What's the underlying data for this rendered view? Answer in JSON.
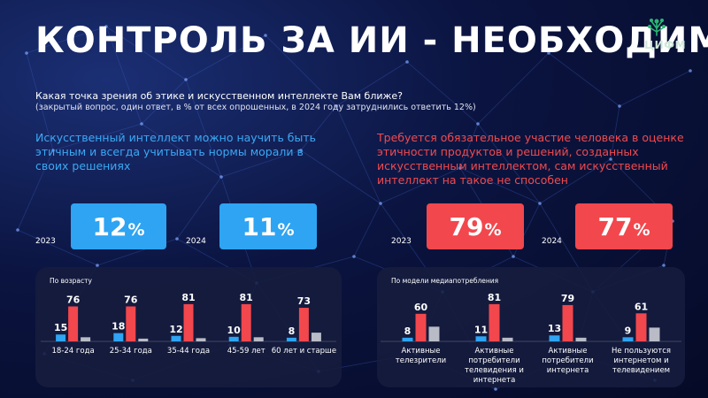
{
  "title": "КОНТРОЛЬ ЗА ИИ  - НЕОБХОДИМ",
  "logo_text": "ЦИФМ",
  "question": "Какая точка зрения об этике и искусственном интеллекте Вам ближе?",
  "question_note": "(закрытый вопрос, один ответ, в % от всех опрошенных, в 2024 году затруднились ответить 12%)",
  "opinion_left": "Искусственный интеллект можно научить быть этичным и всегда учитывать нормы морали в своих решениях",
  "opinion_right": "Требуется обязательное участие человека в оценке этичности продуктов и решений, созданных искусственным интеллектом, сам искусственный интеллект на такое не способен",
  "colors": {
    "blue": "#2ea4f2",
    "red": "#f2474d",
    "gray": "#b9bcc6",
    "panel": "#161c3e"
  },
  "chart_data": [
    {
      "type": "table",
      "series": [
        {
          "name": "Искусственный интеллект можно научить быть этичным и всегда учитывать нормы морали в своих решениях",
          "values": [
            {
              "year": "2023",
              "value": 12
            },
            {
              "year": "2024",
              "value": 11
            }
          ]
        },
        {
          "name": "Требуется обязательное участие человека в оценке этичности продуктов и решений, созданных искусственным интеллектом, сам искусственный интеллект на такое не способен",
          "values": [
            {
              "year": "2023",
              "value": 79
            },
            {
              "year": "2024",
              "value": 77
            }
          ]
        }
      ],
      "unit": "%"
    },
    {
      "type": "bar",
      "title": "По возрасту",
      "categories": [
        "18-24 года",
        "25-34 года",
        "35-44 года",
        "45-59 лет",
        "60 лет и старше"
      ],
      "series": [
        {
          "values": [
            15,
            18,
            12,
            10,
            8
          ],
          "color": "#2ea4f2"
        },
        {
          "values": [
            76,
            76,
            81,
            81,
            73
          ],
          "color": "#f2474d"
        },
        {
          "values": [
            9,
            6,
            7,
            9,
            19
          ],
          "color": "#b9bcc6"
        }
      ],
      "ylim": [
        0,
        100
      ]
    },
    {
      "type": "bar",
      "title": "По модели медиапотребления",
      "categories": [
        [
          "Активные",
          "телезрители"
        ],
        [
          "Активные",
          "потребители",
          "телевидения и",
          "интернета"
        ],
        [
          "Активные",
          "потребители",
          "интернета"
        ],
        [
          "Не пользуются",
          "интернетом и",
          "телевидением"
        ]
      ],
      "series": [
        {
          "values": [
            8,
            11,
            13,
            9
          ],
          "color": "#2ea4f2"
        },
        {
          "values": [
            60,
            81,
            79,
            61
          ],
          "color": "#f2474d"
        },
        {
          "values": [
            32,
            8,
            8,
            30
          ],
          "color": "#b9bcc6"
        }
      ],
      "ylim": [
        0,
        100
      ]
    }
  ]
}
